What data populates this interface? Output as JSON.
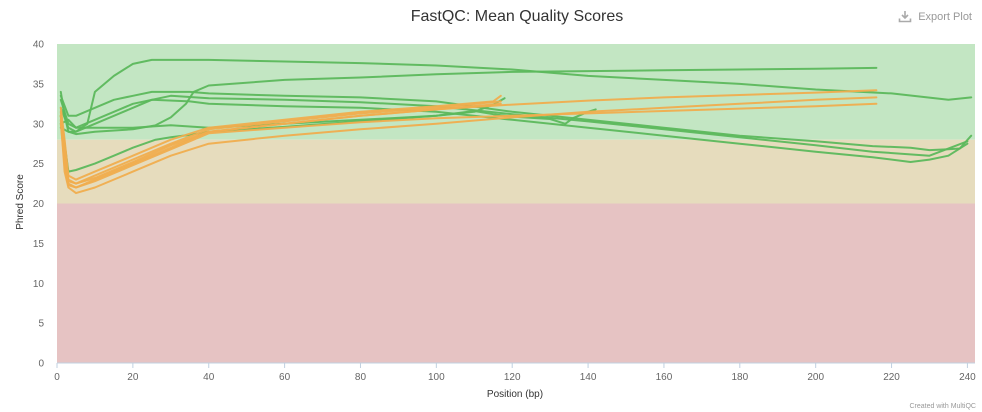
{
  "export_button": {
    "label": "Export Plot",
    "icon": "download-icon"
  },
  "credits": "Created with MultiQC",
  "colors": {
    "pass": "#5cb85c",
    "warn": "#f0ad4e",
    "zone_pass": "#c3e6c3",
    "zone_warn": "#e6dcbd",
    "zone_fail": "#e6c3c3"
  },
  "chart_data": {
    "type": "line",
    "title": "FastQC: Mean Quality Scores",
    "xlabel": "Position (bp)",
    "ylabel": "Phred Score",
    "xlim": [
      0,
      242
    ],
    "ylim": [
      0,
      40
    ],
    "xticks": [
      0,
      20,
      40,
      60,
      80,
      100,
      120,
      140,
      160,
      180,
      200,
      220,
      240
    ],
    "yticks": [
      0,
      5,
      10,
      15,
      20,
      25,
      30,
      35,
      40
    ],
    "grid": false,
    "legend": "none",
    "bands": [
      {
        "from": 28,
        "to": 40,
        "color": "#c3e6c3"
      },
      {
        "from": 20,
        "to": 28,
        "color": "#e6dcbd"
      },
      {
        "from": 0,
        "to": 20,
        "color": "#e6c3c3"
      }
    ],
    "series": [
      {
        "color": "#5cb85c",
        "points": [
          [
            1,
            34
          ],
          [
            2,
            31
          ],
          [
            3,
            29
          ],
          [
            5,
            29
          ],
          [
            8,
            30
          ],
          [
            10,
            34
          ],
          [
            15,
            36
          ],
          [
            20,
            37.5
          ],
          [
            25,
            38
          ],
          [
            40,
            38
          ],
          [
            60,
            37.8
          ],
          [
            80,
            37.6
          ],
          [
            100,
            37.3
          ],
          [
            120,
            36.8
          ],
          [
            140,
            36
          ],
          [
            160,
            35.5
          ],
          [
            180,
            35
          ],
          [
            200,
            34.3
          ],
          [
            220,
            33.8
          ],
          [
            235,
            33
          ],
          [
            241,
            33.3
          ]
        ]
      },
      {
        "color": "#5cb85c",
        "points": [
          [
            1,
            30
          ],
          [
            3,
            30.5
          ],
          [
            5,
            29.5
          ],
          [
            10,
            29.5
          ],
          [
            20,
            29.5
          ],
          [
            30,
            29.8
          ],
          [
            40,
            29.5
          ],
          [
            60,
            30
          ],
          [
            80,
            30.5
          ],
          [
            100,
            31
          ],
          [
            110,
            31.6
          ],
          [
            115,
            31.2
          ],
          [
            120,
            30.9
          ],
          [
            130,
            30.6
          ],
          [
            134,
            30
          ],
          [
            136,
            30.7
          ],
          [
            140,
            31.5
          ],
          [
            142,
            31.8
          ]
        ]
      },
      {
        "color": "#5cb85c",
        "points": [
          [
            1,
            29.5
          ],
          [
            3,
            29
          ],
          [
            5,
            28.7
          ],
          [
            10,
            29
          ],
          [
            20,
            29.3
          ],
          [
            26,
            29.8
          ],
          [
            30,
            30.8
          ],
          [
            34,
            32.5
          ],
          [
            36,
            34
          ],
          [
            40,
            34.8
          ],
          [
            60,
            35.5
          ],
          [
            80,
            35.8
          ],
          [
            100,
            36.2
          ],
          [
            120,
            36.5
          ],
          [
            140,
            36.6
          ],
          [
            160,
            36.7
          ],
          [
            180,
            36.8
          ],
          [
            200,
            36.9
          ],
          [
            216,
            37
          ]
        ]
      },
      {
        "color": "#5cb85c",
        "points": [
          [
            1,
            33.5
          ],
          [
            3,
            31
          ],
          [
            5,
            31
          ],
          [
            10,
            32
          ],
          [
            15,
            33
          ],
          [
            20,
            33.5
          ],
          [
            25,
            34
          ],
          [
            35,
            34
          ],
          [
            40,
            33.8
          ],
          [
            60,
            33.5
          ],
          [
            80,
            33.3
          ],
          [
            100,
            32.8
          ],
          [
            120,
            31.5
          ],
          [
            140,
            30.5
          ],
          [
            160,
            29.5
          ],
          [
            180,
            28.5
          ],
          [
            200,
            27.8
          ],
          [
            215,
            27.2
          ],
          [
            225,
            27
          ],
          [
            230,
            26.7
          ],
          [
            235,
            26.8
          ],
          [
            238,
            26.9
          ],
          [
            241,
            28.5
          ]
        ]
      },
      {
        "color": "#5cb85c",
        "points": [
          [
            1,
            33
          ],
          [
            3,
            30
          ],
          [
            5,
            29.5
          ],
          [
            10,
            30.5
          ],
          [
            15,
            31.5
          ],
          [
            20,
            32.5
          ],
          [
            25,
            33
          ],
          [
            35,
            32.8
          ],
          [
            40,
            32.5
          ],
          [
            60,
            32.2
          ],
          [
            80,
            32
          ],
          [
            100,
            31.5
          ],
          [
            120,
            30.5
          ],
          [
            140,
            29.5
          ],
          [
            160,
            28.5
          ],
          [
            180,
            27.5
          ],
          [
            200,
            26.5
          ],
          [
            215,
            25.8
          ],
          [
            225,
            25.2
          ],
          [
            230,
            25.5
          ],
          [
            235,
            26
          ],
          [
            240,
            27.5
          ]
        ]
      },
      {
        "color": "#5cb85c",
        "points": [
          [
            1,
            32
          ],
          [
            3,
            29.5
          ],
          [
            5,
            29
          ],
          [
            10,
            30
          ],
          [
            15,
            31
          ],
          [
            20,
            32
          ],
          [
            25,
            33
          ],
          [
            30,
            33.5
          ],
          [
            40,
            33.2
          ],
          [
            60,
            33
          ],
          [
            80,
            32.7
          ],
          [
            100,
            32.2
          ],
          [
            120,
            31.2
          ],
          [
            140,
            30.3
          ],
          [
            160,
            29.3
          ],
          [
            180,
            28.3
          ],
          [
            200,
            27.3
          ],
          [
            215,
            26.5
          ],
          [
            230,
            26
          ],
          [
            240,
            27.8
          ]
        ]
      },
      {
        "color": "#5cb85c",
        "points": [
          [
            1,
            31
          ],
          [
            3,
            24
          ],
          [
            5,
            24.2
          ],
          [
            10,
            25
          ],
          [
            15,
            26
          ],
          [
            20,
            27
          ],
          [
            26,
            28
          ],
          [
            30,
            28.3
          ],
          [
            35,
            28.6
          ],
          [
            40,
            29
          ],
          [
            60,
            29.6
          ],
          [
            80,
            30.3
          ],
          [
            100,
            31
          ],
          [
            110,
            31.5
          ],
          [
            115,
            32.4
          ],
          [
            118,
            33.2
          ]
        ]
      },
      {
        "color": "#f0ad4e",
        "points": [
          [
            1,
            32
          ],
          [
            2,
            28
          ],
          [
            3,
            23.5
          ],
          [
            5,
            23
          ],
          [
            10,
            24
          ],
          [
            20,
            26
          ],
          [
            30,
            28
          ],
          [
            40,
            29.5
          ],
          [
            60,
            30.5
          ],
          [
            80,
            31.5
          ],
          [
            100,
            32.2
          ],
          [
            115,
            32.8
          ],
          [
            117,
            33.5
          ]
        ]
      },
      {
        "color": "#f0ad4e",
        "points": [
          [
            1,
            31.5
          ],
          [
            2,
            27
          ],
          [
            3,
            23
          ],
          [
            5,
            22.5
          ],
          [
            10,
            23.5
          ],
          [
            20,
            25.5
          ],
          [
            30,
            27.5
          ],
          [
            40,
            29.3
          ],
          [
            60,
            30.3
          ],
          [
            80,
            31.3
          ],
          [
            100,
            32
          ],
          [
            117,
            32.8
          ]
        ]
      },
      {
        "color": "#f0ad4e",
        "points": [
          [
            1,
            31
          ],
          [
            2,
            25
          ],
          [
            3,
            22.3
          ],
          [
            5,
            22
          ],
          [
            10,
            23
          ],
          [
            20,
            25
          ],
          [
            30,
            27
          ],
          [
            40,
            29
          ],
          [
            60,
            30
          ],
          [
            80,
            31
          ],
          [
            100,
            31.8
          ],
          [
            117,
            32.5
          ]
        ]
      },
      {
        "color": "#f0ad4e",
        "points": [
          [
            1,
            30.5
          ],
          [
            2,
            24
          ],
          [
            3,
            22
          ],
          [
            5,
            21.3
          ],
          [
            10,
            22
          ],
          [
            20,
            24
          ],
          [
            30,
            26
          ],
          [
            40,
            27.5
          ],
          [
            60,
            28.5
          ],
          [
            80,
            29.3
          ],
          [
            100,
            30
          ],
          [
            120,
            30.8
          ],
          [
            140,
            31.5
          ],
          [
            160,
            32
          ],
          [
            180,
            32.5
          ],
          [
            200,
            33
          ],
          [
            216,
            33.3
          ]
        ]
      },
      {
        "color": "#f0ad4e",
        "points": [
          [
            1,
            31
          ],
          [
            2,
            26
          ],
          [
            3,
            22.8
          ],
          [
            5,
            22.5
          ],
          [
            10,
            23.2
          ],
          [
            20,
            25.2
          ],
          [
            30,
            27.3
          ],
          [
            40,
            29
          ],
          [
            60,
            30
          ],
          [
            80,
            31
          ],
          [
            100,
            31.8
          ],
          [
            120,
            32.4
          ],
          [
            140,
            32.9
          ],
          [
            160,
            33.3
          ],
          [
            180,
            33.6
          ],
          [
            200,
            33.9
          ],
          [
            216,
            34.2
          ]
        ]
      },
      {
        "color": "#f0ad4e",
        "points": [
          [
            1,
            30
          ],
          [
            2,
            25
          ],
          [
            3,
            22.5
          ],
          [
            5,
            22
          ],
          [
            10,
            22.8
          ],
          [
            20,
            24.8
          ],
          [
            30,
            26.8
          ],
          [
            40,
            28.8
          ],
          [
            60,
            29.5
          ],
          [
            80,
            30.2
          ],
          [
            100,
            30.7
          ],
          [
            120,
            31
          ],
          [
            140,
            31.3
          ],
          [
            160,
            31.6
          ],
          [
            180,
            31.9
          ],
          [
            200,
            32.2
          ],
          [
            216,
            32.5
          ]
        ]
      }
    ]
  }
}
